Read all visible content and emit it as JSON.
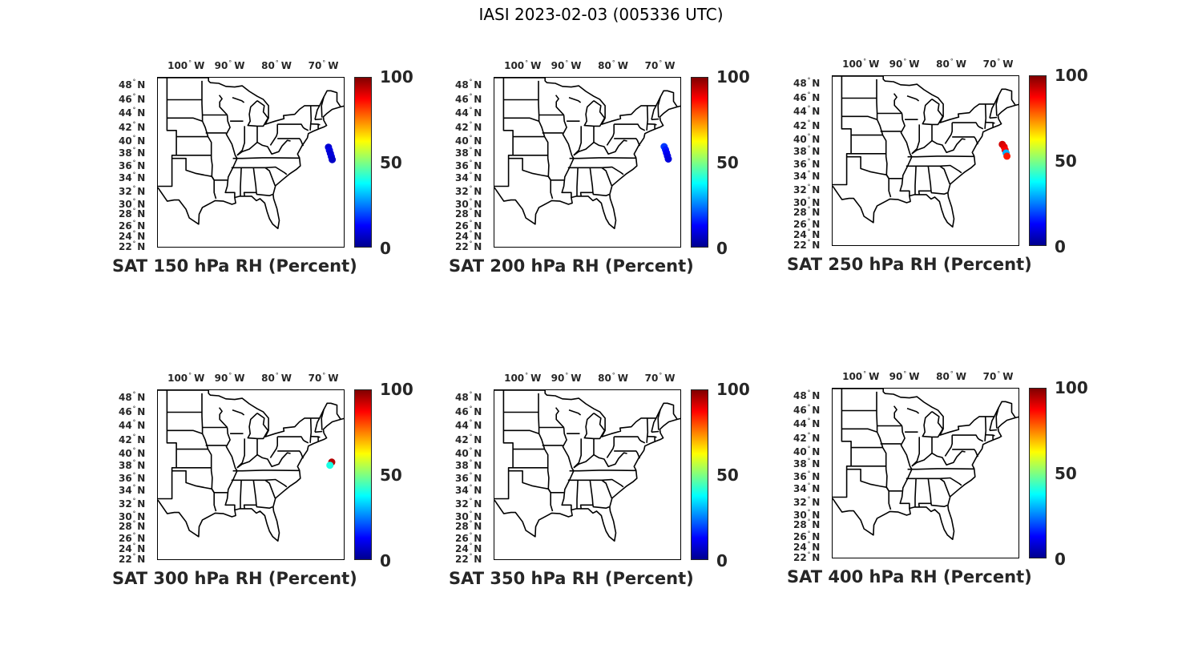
{
  "main_title": "IASI 2023-02-03 (005336 UTC)",
  "lon_ticks": [
    {
      "deg": "100",
      "hem": "W"
    },
    {
      "deg": "90",
      "hem": "W"
    },
    {
      "deg": "80",
      "hem": "W"
    },
    {
      "deg": "70",
      "hem": "W"
    }
  ],
  "lat_ticks": [
    {
      "deg": "48",
      "hem": "N"
    },
    {
      "deg": "46",
      "hem": "N"
    },
    {
      "deg": "44",
      "hem": "N"
    },
    {
      "deg": "42",
      "hem": "N"
    },
    {
      "deg": "40",
      "hem": "N"
    },
    {
      "deg": "38",
      "hem": "N"
    },
    {
      "deg": "36",
      "hem": "N"
    },
    {
      "deg": "34",
      "hem": "N"
    },
    {
      "deg": "32",
      "hem": "N"
    },
    {
      "deg": "30",
      "hem": "N"
    },
    {
      "deg": "28",
      "hem": "N"
    },
    {
      "deg": "26",
      "hem": "N"
    },
    {
      "deg": "24",
      "hem": "N"
    },
    {
      "deg": "22",
      "hem": "N"
    }
  ],
  "colorbar": {
    "labels": [
      "100",
      "50",
      "0"
    ],
    "range": [
      0,
      100
    ],
    "colormap": "jet"
  },
  "panels": [
    {
      "title": "SAT 150 hPa RH (Percent)",
      "points": [
        {
          "lon": -69.6,
          "lat": 38.3,
          "value": 8
        },
        {
          "lon": -69.4,
          "lat": 37.8,
          "value": 10
        },
        {
          "lon": -69.2,
          "lat": 37.3,
          "value": 8
        },
        {
          "lon": -69.0,
          "lat": 36.8,
          "value": 9
        },
        {
          "lon": -68.8,
          "lat": 36.3,
          "value": 7
        }
      ]
    },
    {
      "title": "SAT 200 hPa RH (Percent)",
      "points": [
        {
          "lon": -69.8,
          "lat": 38.4,
          "value": 18
        },
        {
          "lon": -69.5,
          "lat": 37.9,
          "value": 15
        },
        {
          "lon": -69.3,
          "lat": 37.4,
          "value": 12
        },
        {
          "lon": -69.1,
          "lat": 36.9,
          "value": 10
        },
        {
          "lon": -68.9,
          "lat": 36.4,
          "value": 9
        }
      ]
    },
    {
      "title": "SAT 250 hPa RH (Percent)",
      "points": [
        {
          "lon": -69.8,
          "lat": 38.5,
          "value": 92
        },
        {
          "lon": -69.4,
          "lat": 38.1,
          "value": 90
        },
        {
          "lon": -69.2,
          "lat": 37.6,
          "value": 88
        },
        {
          "lon": -69.0,
          "lat": 37.1,
          "value": 30
        },
        {
          "lon": -68.8,
          "lat": 36.6,
          "value": 85
        }
      ]
    },
    {
      "title": "SAT 300 hPa RH (Percent)",
      "points": [
        {
          "lon": -68.9,
          "lat": 37.9,
          "value": 95
        },
        {
          "lon": -69.3,
          "lat": 37.4,
          "value": 40
        }
      ]
    },
    {
      "title": "SAT 350 hPa RH (Percent)",
      "points": []
    },
    {
      "title": "SAT 400 hPa RH (Percent)",
      "points": []
    }
  ]
}
